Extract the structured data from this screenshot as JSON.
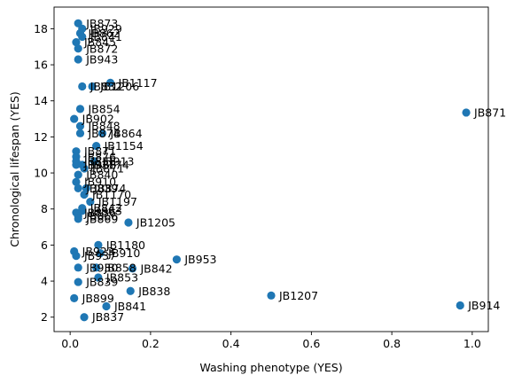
{
  "chart_data": {
    "type": "scatter",
    "xlabel": "Washing phenotype (YES)",
    "ylabel": "Chronological lifespan (YES)",
    "xlim": [
      -0.04,
      1.04
    ],
    "ylim": [
      1.2,
      19.2
    ],
    "xticks": [
      "0.0",
      "0.2",
      "0.4",
      "0.6",
      "0.8",
      "1.0"
    ],
    "yticks": [
      "2",
      "4",
      "6",
      "8",
      "10",
      "12",
      "14",
      "16",
      "18"
    ],
    "grid": false,
    "marker_color": "#1f77b4",
    "points": [
      {
        "x": 0.02,
        "y": 18.3,
        "label": "JB873"
      },
      {
        "x": 0.03,
        "y": 18.0,
        "label": "JB929"
      },
      {
        "x": 0.025,
        "y": 17.75,
        "label": "JB862"
      },
      {
        "x": 0.03,
        "y": 17.55,
        "label": "JB841"
      },
      {
        "x": 0.015,
        "y": 17.25,
        "label": "JB845"
      },
      {
        "x": 0.02,
        "y": 16.9,
        "label": "JB872"
      },
      {
        "x": 0.02,
        "y": 16.3,
        "label": "JB943"
      },
      {
        "x": 0.1,
        "y": 15.0,
        "label": "JB1117"
      },
      {
        "x": 0.03,
        "y": 14.8,
        "label": "JB832"
      },
      {
        "x": 0.055,
        "y": 14.8,
        "label": "JB1206"
      },
      {
        "x": 0.025,
        "y": 13.55,
        "label": "JB854"
      },
      {
        "x": 0.01,
        "y": 13.0,
        "label": "JB902"
      },
      {
        "x": 0.025,
        "y": 12.6,
        "label": "JB848"
      },
      {
        "x": 0.025,
        "y": 12.2,
        "label": "JB874"
      },
      {
        "x": 0.08,
        "y": 12.2,
        "label": "JB864"
      },
      {
        "x": 0.065,
        "y": 11.5,
        "label": "JB1154"
      },
      {
        "x": 0.015,
        "y": 11.2,
        "label": "JB871"
      },
      {
        "x": 0.015,
        "y": 10.9,
        "label": "JB876"
      },
      {
        "x": 0.015,
        "y": 10.65,
        "label": "JB858"
      },
      {
        "x": 0.015,
        "y": 10.45,
        "label": "JB938"
      },
      {
        "x": 0.06,
        "y": 10.65,
        "label": "JB913"
      },
      {
        "x": 0.03,
        "y": 10.45,
        "label": "JB1174"
      },
      {
        "x": 0.035,
        "y": 10.25,
        "label": "JB871"
      },
      {
        "x": 0.02,
        "y": 9.9,
        "label": "JB840"
      },
      {
        "x": 0.015,
        "y": 9.5,
        "label": "JB910"
      },
      {
        "x": 0.02,
        "y": 9.15,
        "label": "JB839"
      },
      {
        "x": 0.04,
        "y": 9.15,
        "label": "JB874"
      },
      {
        "x": 0.035,
        "y": 8.8,
        "label": "JB1170"
      },
      {
        "x": 0.05,
        "y": 8.4,
        "label": "JB1197"
      },
      {
        "x": 0.03,
        "y": 8.05,
        "label": "JB842"
      },
      {
        "x": 0.03,
        "y": 7.9,
        "label": "JB863"
      },
      {
        "x": 0.015,
        "y": 7.8,
        "label": "JB836"
      },
      {
        "x": 0.02,
        "y": 7.6,
        "label": "JB866"
      },
      {
        "x": 0.02,
        "y": 7.45,
        "label": "JB869"
      },
      {
        "x": 0.145,
        "y": 7.25,
        "label": "JB1205"
      },
      {
        "x": 0.07,
        "y": 6.0,
        "label": "JB1180"
      },
      {
        "x": 0.01,
        "y": 5.65,
        "label": "JB923"
      },
      {
        "x": 0.015,
        "y": 5.4,
        "label": "JB937"
      },
      {
        "x": 0.075,
        "y": 5.55,
        "label": "JB910"
      },
      {
        "x": 0.265,
        "y": 5.2,
        "label": "JB953"
      },
      {
        "x": 0.02,
        "y": 4.75,
        "label": "JB930"
      },
      {
        "x": 0.065,
        "y": 4.75,
        "label": "JB858"
      },
      {
        "x": 0.155,
        "y": 4.7,
        "label": "JB842"
      },
      {
        "x": 0.07,
        "y": 4.2,
        "label": "JB853"
      },
      {
        "x": 0.02,
        "y": 3.95,
        "label": "JB839"
      },
      {
        "x": 0.15,
        "y": 3.45,
        "label": "JB838"
      },
      {
        "x": 0.5,
        "y": 3.2,
        "label": "JB1207"
      },
      {
        "x": 0.985,
        "y": 13.35,
        "label": "JB871"
      },
      {
        "x": 0.01,
        "y": 3.05,
        "label": "JB899"
      },
      {
        "x": 0.09,
        "y": 2.6,
        "label": "JB841"
      },
      {
        "x": 0.97,
        "y": 2.65,
        "label": "JB914"
      },
      {
        "x": 0.035,
        "y": 2.0,
        "label": "JB837"
      }
    ]
  }
}
